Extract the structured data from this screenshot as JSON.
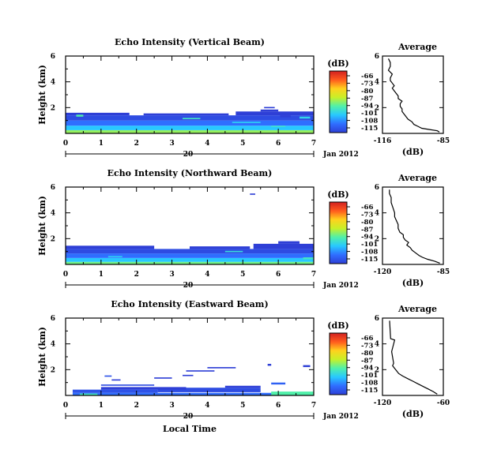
{
  "date_label": "Jan 2012",
  "colorbar": {
    "unit": "(dB)",
    "ticks": [
      "-66",
      "-73",
      "-80",
      "-87",
      "-94",
      "-101",
      "-108",
      "-115"
    ],
    "stops": [
      "#d22020",
      "#ff5a1e",
      "#ffd21e",
      "#c8f028",
      "#50f0aa",
      "#28c8ff",
      "#2f6eff",
      "#2e3fd6"
    ]
  },
  "chart_data": [
    {
      "type": "heatmap",
      "title": "Echo Intensity (Vertical Beam)",
      "ylabel": "Height (km)",
      "xlabel": "",
      "x_ticks": [
        "0",
        "1",
        "2",
        "3",
        "4",
        "5",
        "6",
        "7"
      ],
      "y_ticks": [
        "2",
        "4",
        "6"
      ],
      "xlim": [
        0,
        7
      ],
      "ylim": [
        0,
        6
      ],
      "day_label": "20",
      "cells": [
        [
          0.0,
          7.0,
          0.0,
          0.25,
          -90
        ],
        [
          0.0,
          7.0,
          0.25,
          0.6,
          -101
        ],
        [
          0.0,
          7.0,
          0.6,
          1.0,
          -108
        ],
        [
          0.0,
          7.0,
          1.0,
          1.4,
          -113
        ],
        [
          0.0,
          1.8,
          1.4,
          1.6,
          -115
        ],
        [
          2.2,
          4.6,
          1.4,
          1.55,
          -115
        ],
        [
          4.8,
          7.0,
          1.4,
          1.7,
          -115
        ],
        [
          5.5,
          6.0,
          1.7,
          1.85,
          -115
        ],
        [
          0.3,
          0.5,
          1.3,
          1.45,
          -94
        ],
        [
          3.3,
          3.8,
          1.1,
          1.2,
          -96
        ],
        [
          4.7,
          5.5,
          0.8,
          0.9,
          -100
        ],
        [
          5.8,
          6.2,
          0.5,
          0.6,
          -97
        ],
        [
          6.6,
          6.9,
          1.15,
          1.3,
          -99
        ],
        [
          5.6,
          5.9,
          1.95,
          2.05,
          -115
        ],
        [
          6.05,
          6.35,
          1.25,
          1.4,
          -115
        ]
      ],
      "profile": {
        "title": "Average",
        "xlabel": "(dB)",
        "x_ticks": [
          "-116",
          "-85"
        ],
        "xlim": [
          -116,
          -85
        ],
        "ylim": [
          0,
          6
        ],
        "y_ticks": [
          "2",
          "4",
          "6"
        ],
        "x": [
          -87,
          -88,
          -92,
          -96,
          -98,
          -100,
          -101,
          -103,
          -104,
          -105,
          -106,
          -106,
          -107,
          -107,
          -106,
          -108,
          -108,
          -109,
          -110,
          -111,
          -110,
          -111,
          -112,
          -112,
          -111,
          -113,
          -112,
          -112,
          -113
        ],
        "y": [
          0.1,
          0.2,
          0.3,
          0.4,
          0.55,
          0.7,
          0.9,
          1.1,
          1.3,
          1.5,
          1.7,
          1.9,
          2.1,
          2.3,
          2.5,
          2.7,
          2.9,
          3.1,
          3.3,
          3.5,
          3.7,
          3.9,
          4.1,
          4.3,
          4.6,
          4.9,
          5.2,
          5.5,
          5.8
        ]
      }
    },
    {
      "type": "heatmap",
      "title": "Echo Intensity (Northward Beam)",
      "ylabel": "Height (km)",
      "xlabel": "",
      "x_ticks": [
        "0",
        "1",
        "2",
        "3",
        "4",
        "5",
        "6",
        "7"
      ],
      "y_ticks": [
        "2",
        "4",
        "6"
      ],
      "xlim": [
        0,
        7
      ],
      "ylim": [
        0,
        6
      ],
      "day_label": "20",
      "cells": [
        [
          0.0,
          7.0,
          0.0,
          0.2,
          -92
        ],
        [
          0.0,
          7.0,
          0.2,
          0.5,
          -101
        ],
        [
          0.0,
          7.0,
          0.5,
          0.85,
          -108
        ],
        [
          0.0,
          7.0,
          0.85,
          1.2,
          -113
        ],
        [
          0.0,
          2.5,
          1.2,
          1.45,
          -115
        ],
        [
          3.5,
          5.2,
          1.2,
          1.4,
          -115
        ],
        [
          5.3,
          7.0,
          1.2,
          1.6,
          -115
        ],
        [
          6.0,
          6.6,
          1.6,
          1.8,
          -115
        ],
        [
          5.2,
          5.35,
          5.4,
          5.5,
          -115
        ],
        [
          4.5,
          5.0,
          0.95,
          1.05,
          -98
        ],
        [
          6.7,
          7.0,
          0.4,
          0.55,
          -96
        ],
        [
          1.2,
          1.6,
          0.55,
          0.65,
          -100
        ]
      ],
      "profile": {
        "title": "Average",
        "xlabel": "(dB)",
        "x_ticks": [
          "-120",
          "-85"
        ],
        "xlim": [
          -120,
          -85
        ],
        "ylim": [
          0,
          6
        ],
        "y_ticks": [
          "2",
          "4",
          "6"
        ],
        "x": [
          -87,
          -90,
          -94,
          -97,
          -99,
          -101,
          -103,
          -104,
          -106,
          -105,
          -107,
          -108,
          -108,
          -110,
          -111,
          -111,
          -112,
          -113,
          -113,
          -114,
          -115,
          -115,
          -116,
          -116
        ],
        "y": [
          0.1,
          0.25,
          0.4,
          0.55,
          0.7,
          0.9,
          1.1,
          1.3,
          1.5,
          1.7,
          1.9,
          2.1,
          2.3,
          2.5,
          2.8,
          3.1,
          3.4,
          3.7,
          4.0,
          4.4,
          4.8,
          5.2,
          5.5,
          5.8
        ]
      }
    },
    {
      "type": "heatmap",
      "title": "Echo Intensity (Eastward Beam)",
      "ylabel": "Height (km)",
      "xlabel": "Local Time",
      "x_ticks": [
        "0",
        "1",
        "2",
        "3",
        "4",
        "5",
        "6",
        "7"
      ],
      "y_ticks": [
        "2",
        "4",
        "6"
      ],
      "xlim": [
        0,
        7
      ],
      "ylim": [
        0,
        6
      ],
      "day_label": "20",
      "cells": [
        [
          0.2,
          6.0,
          0.0,
          0.2,
          -108
        ],
        [
          0.4,
          0.9,
          0.0,
          0.15,
          -96
        ],
        [
          5.8,
          7.0,
          0.0,
          0.3,
          -94
        ],
        [
          0.2,
          2.6,
          0.2,
          0.45,
          -112
        ],
        [
          2.6,
          5.5,
          0.25,
          0.6,
          -113
        ],
        [
          1.0,
          3.4,
          0.45,
          0.65,
          -115
        ],
        [
          4.5,
          5.5,
          0.6,
          0.75,
          -115
        ],
        [
          1.0,
          2.5,
          0.75,
          0.85,
          -113
        ],
        [
          5.8,
          6.2,
          0.85,
          1.0,
          -110
        ],
        [
          1.3,
          1.55,
          1.15,
          1.25,
          -115
        ],
        [
          2.5,
          3.0,
          1.3,
          1.4,
          -115
        ],
        [
          3.3,
          3.6,
          1.5,
          1.6,
          -115
        ],
        [
          3.4,
          4.2,
          1.85,
          1.95,
          -115
        ],
        [
          4.0,
          4.8,
          2.1,
          2.2,
          -115
        ],
        [
          5.7,
          5.8,
          2.3,
          2.45,
          -115
        ],
        [
          6.7,
          6.9,
          2.2,
          2.35,
          -115
        ],
        [
          1.1,
          1.3,
          1.45,
          1.55,
          -112
        ]
      ],
      "profile": {
        "title": "Average",
        "xlabel": "(dB)",
        "x_ticks": [
          "-120",
          "-60"
        ],
        "xlim": [
          -120,
          -60
        ],
        "ylim": [
          0,
          6
        ],
        "y_ticks": [
          "2",
          "4",
          "6"
        ],
        "x": [
          -66,
          -70,
          -75,
          -80,
          -85,
          -90,
          -95,
          -100,
          -104,
          -106,
          -108,
          -110,
          -109,
          -111,
          -108,
          -112,
          -113
        ],
        "y": [
          0.1,
          0.3,
          0.5,
          0.7,
          0.9,
          1.1,
          1.3,
          1.5,
          1.7,
          1.9,
          2.1,
          2.3,
          2.5,
          3.4,
          4.3,
          4.4,
          5.8
        ]
      }
    }
  ]
}
